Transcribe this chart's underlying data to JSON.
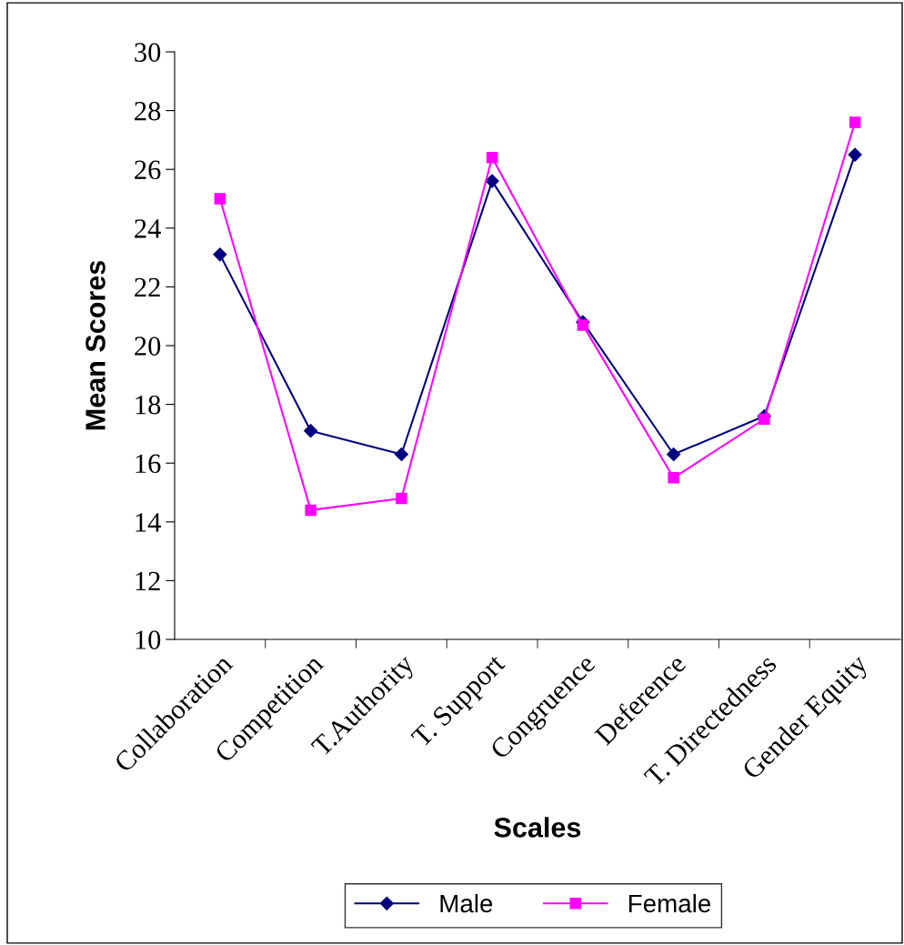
{
  "chart_data": {
    "type": "line",
    "xlabel": "Scales",
    "ylabel": "Mean Scores",
    "categories": [
      "Collaboration",
      "Competition",
      "T.Authority",
      "T. Support",
      "Congruence",
      "Deference",
      "T. Directedness",
      "Gender Equity"
    ],
    "series": [
      {
        "name": "Male",
        "color": "#000080",
        "marker": "diamond",
        "values": [
          23.1,
          17.1,
          16.3,
          25.6,
          20.8,
          16.3,
          17.6,
          26.5
        ]
      },
      {
        "name": "Female",
        "color": "#ff00ff",
        "marker": "square",
        "values": [
          25.0,
          14.4,
          14.8,
          26.4,
          20.7,
          15.5,
          17.5,
          27.6
        ]
      }
    ],
    "ylim": [
      10,
      30
    ],
    "yticks": [
      10,
      12,
      14,
      16,
      18,
      20,
      22,
      24,
      26,
      28,
      30
    ],
    "grid": false,
    "legend": "bottom",
    "line_style": "solid"
  }
}
